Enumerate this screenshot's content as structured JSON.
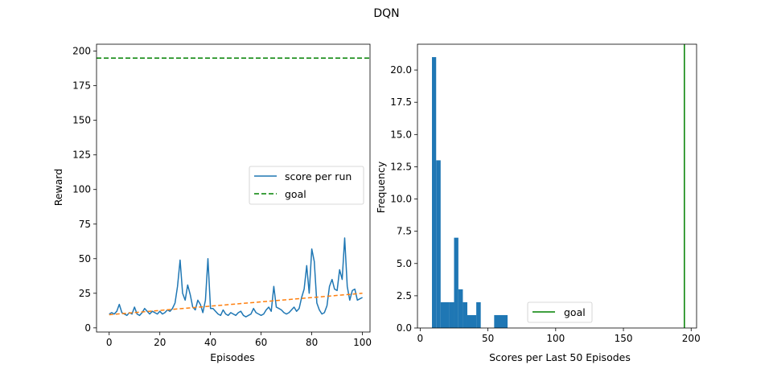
{
  "figure": {
    "title": "DQN"
  },
  "chart_data": [
    {
      "type": "line",
      "xlabel": "Episodes",
      "ylabel": "Reward",
      "xlim": [
        -5,
        103
      ],
      "ylim": [
        -3,
        205
      ],
      "xticks": [
        0,
        20,
        40,
        60,
        80,
        100
      ],
      "yticks": [
        0,
        25,
        50,
        75,
        100,
        125,
        150,
        175,
        200
      ],
      "legend_position": "center-right",
      "series": [
        {
          "name": "score per run",
          "style": "solid",
          "color": "#1f77b4",
          "x": [
            0,
            1,
            2,
            3,
            4,
            5,
            6,
            7,
            8,
            9,
            10,
            11,
            12,
            13,
            14,
            15,
            16,
            17,
            18,
            19,
            20,
            21,
            22,
            23,
            24,
            25,
            26,
            27,
            28,
            29,
            30,
            31,
            32,
            33,
            34,
            35,
            36,
            37,
            38,
            39,
            40,
            41,
            42,
            43,
            44,
            45,
            46,
            47,
            48,
            49,
            50,
            51,
            52,
            53,
            54,
            55,
            56,
            57,
            58,
            59,
            60,
            61,
            62,
            63,
            64,
            65,
            66,
            67,
            68,
            69,
            70,
            71,
            72,
            73,
            74,
            75,
            76,
            77,
            78,
            79,
            80,
            81,
            82,
            83,
            84,
            85,
            86,
            87,
            88,
            89,
            90,
            91,
            92,
            93,
            94,
            95,
            96,
            97,
            98,
            99,
            100
          ],
          "y": [
            10,
            11,
            10,
            12,
            17,
            11,
            10,
            9,
            11,
            10,
            15,
            10,
            9,
            11,
            14,
            12,
            10,
            12,
            11,
            10,
            12,
            10,
            11,
            13,
            12,
            14,
            18,
            30,
            49,
            25,
            20,
            31,
            24,
            15,
            13,
            20,
            17,
            11,
            20,
            50,
            14,
            14,
            12,
            10,
            9,
            13,
            10,
            9,
            11,
            10,
            9,
            11,
            12,
            9,
            8,
            9,
            10,
            14,
            11,
            10,
            9,
            10,
            13,
            15,
            12,
            30,
            15,
            14,
            13,
            11,
            10,
            11,
            13,
            15,
            12,
            14,
            22,
            28,
            45,
            25,
            57,
            48,
            18,
            13,
            10,
            11,
            16,
            30,
            35,
            28,
            27,
            42,
            35,
            65,
            30,
            20,
            27,
            28,
            20,
            21,
            22
          ]
        },
        {
          "name": "goal",
          "style": "dashed",
          "color": "#008000",
          "y_constant": 195
        },
        {
          "style": "dashed",
          "color": "#ff7f0e",
          "x": [
            0,
            100
          ],
          "y": [
            9.5,
            25
          ]
        }
      ]
    },
    {
      "type": "bar",
      "subtype": "histogram",
      "xlabel": "Scores per Last 50 Episodes",
      "ylabel": "Frequency",
      "xlim": [
        -2,
        204
      ],
      "ylim": [
        0,
        22
      ],
      "xticks": [
        0,
        50,
        100,
        150,
        200
      ],
      "yticks": [
        0.0,
        2.5,
        5.0,
        7.5,
        10.0,
        12.5,
        15.0,
        17.5,
        20.0
      ],
      "legend_position": "lower-center",
      "color": "#1f77b4",
      "bins": [
        {
          "start": 8.7,
          "end": 11.8,
          "count": 21
        },
        {
          "start": 11.8,
          "end": 15.1,
          "count": 13
        },
        {
          "start": 15.1,
          "end": 21.7,
          "count": 2
        },
        {
          "start": 21.7,
          "end": 25.0,
          "count": 2
        },
        {
          "start": 25.0,
          "end": 28.2,
          "count": 7
        },
        {
          "start": 28.2,
          "end": 31.5,
          "count": 3
        },
        {
          "start": 31.5,
          "end": 34.8,
          "count": 2
        },
        {
          "start": 34.8,
          "end": 41.4,
          "count": 1
        },
        {
          "start": 41.4,
          "end": 44.7,
          "count": 2
        },
        {
          "start": 54.6,
          "end": 64.5,
          "count": 1
        }
      ],
      "goal": {
        "name": "goal",
        "x": 195,
        "color": "#008000",
        "style": "solid"
      }
    }
  ]
}
